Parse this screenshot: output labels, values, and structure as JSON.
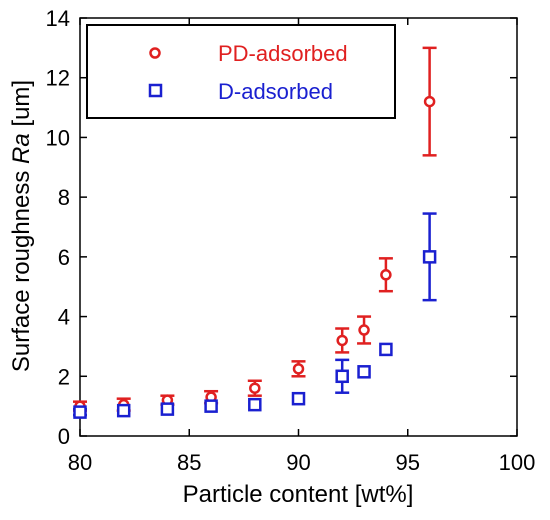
{
  "chart_data": {
    "type": "scatter",
    "xlabel": "Particle content [wt%]",
    "ylabel_main": "Surface roughness ",
    "ylabel_italic": "Ra",
    "ylabel_unit": " [um]",
    "xlim": [
      80,
      100
    ],
    "ylim": [
      0,
      14
    ],
    "xticks": [
      "80",
      "85",
      "90",
      "95",
      "100"
    ],
    "yticks": [
      "0",
      "2",
      "4",
      "6",
      "8",
      "10",
      "12",
      "14"
    ],
    "grid": false,
    "legend_position": "top-left",
    "series": [
      {
        "name": "PD-adsorbed",
        "color": "#e02020",
        "marker": "circle",
        "points": [
          {
            "x": 80,
            "y": 1.0,
            "err": 0.15
          },
          {
            "x": 82,
            "y": 1.05,
            "err": 0.2
          },
          {
            "x": 84,
            "y": 1.2,
            "err": 0.15
          },
          {
            "x": 86,
            "y": 1.3,
            "err": 0.2
          },
          {
            "x": 88,
            "y": 1.6,
            "err": 0.25
          },
          {
            "x": 90,
            "y": 2.25,
            "err": 0.25
          },
          {
            "x": 92,
            "y": 3.2,
            "err": 0.4
          },
          {
            "x": 93,
            "y": 3.55,
            "err": 0.45
          },
          {
            "x": 94,
            "y": 5.4,
            "err": 0.55
          },
          {
            "x": 96,
            "y": 11.2,
            "err": 1.8
          }
        ]
      },
      {
        "name": "D-adsorbed",
        "color": "#1a20d0",
        "marker": "square",
        "points": [
          {
            "x": 80,
            "y": 0.8,
            "err": 0.1
          },
          {
            "x": 82,
            "y": 0.85,
            "err": 0.05
          },
          {
            "x": 84,
            "y": 0.9,
            "err": 0.05
          },
          {
            "x": 86,
            "y": 1.0,
            "err": 0.05
          },
          {
            "x": 88,
            "y": 1.05,
            "err": 0.05
          },
          {
            "x": 90,
            "y": 1.25,
            "err": 0.05
          },
          {
            "x": 92,
            "y": 2.0,
            "err": 0.55
          },
          {
            "x": 93,
            "y": 2.15,
            "err": 0.05
          },
          {
            "x": 94,
            "y": 2.9,
            "err": 0.05
          },
          {
            "x": 96,
            "y": 6.0,
            "err": 1.45
          }
        ]
      }
    ]
  }
}
